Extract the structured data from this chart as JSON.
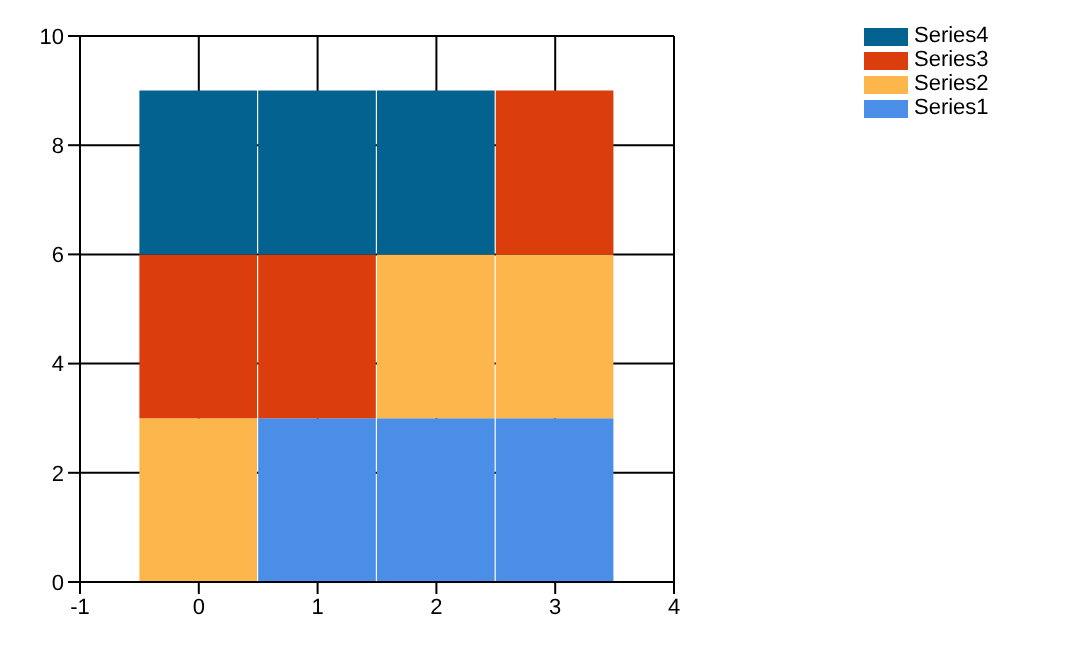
{
  "chart_data": {
    "type": "bar",
    "stacked": true,
    "x": [
      0,
      1,
      2,
      3
    ],
    "series": [
      {
        "name": "Series1",
        "color": "#4a8ee8",
        "values": [
          0,
          3,
          3,
          3
        ]
      },
      {
        "name": "Series2",
        "color": "#fdb64c",
        "values": [
          3,
          0,
          3,
          3
        ]
      },
      {
        "name": "Series3",
        "color": "#dc3d0c",
        "values": [
          3,
          3,
          0,
          3
        ]
      },
      {
        "name": "Series4",
        "color": "#03628f",
        "values": [
          3,
          3,
          3,
          0
        ]
      }
    ],
    "xlim": [
      -1,
      4
    ],
    "xticks": [
      -1,
      0,
      1,
      2,
      3,
      4
    ],
    "ylim": [
      0,
      10
    ],
    "yticks": [
      0,
      2,
      4,
      6,
      8,
      10
    ],
    "grid": true,
    "legend": "top right"
  }
}
